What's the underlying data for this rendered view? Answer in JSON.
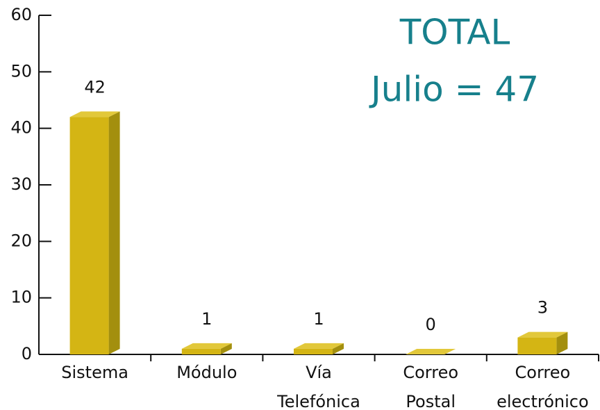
{
  "chart_data": {
    "type": "bar3d",
    "annotation": [
      "TOTAL",
      "Julio = 47"
    ],
    "annotation_color": "#17808c",
    "categories": [
      [
        "Sistema"
      ],
      [
        "Módulo"
      ],
      [
        "Vía",
        "Telefónica"
      ],
      [
        "Correo",
        "Postal"
      ],
      [
        "Correo",
        "electrónico"
      ]
    ],
    "values": [
      42,
      1,
      1,
      0,
      3
    ],
    "color": "#d4b514",
    "ylim": [
      0,
      60
    ],
    "yticks": [
      0,
      10,
      20,
      30,
      40,
      50,
      60
    ]
  }
}
